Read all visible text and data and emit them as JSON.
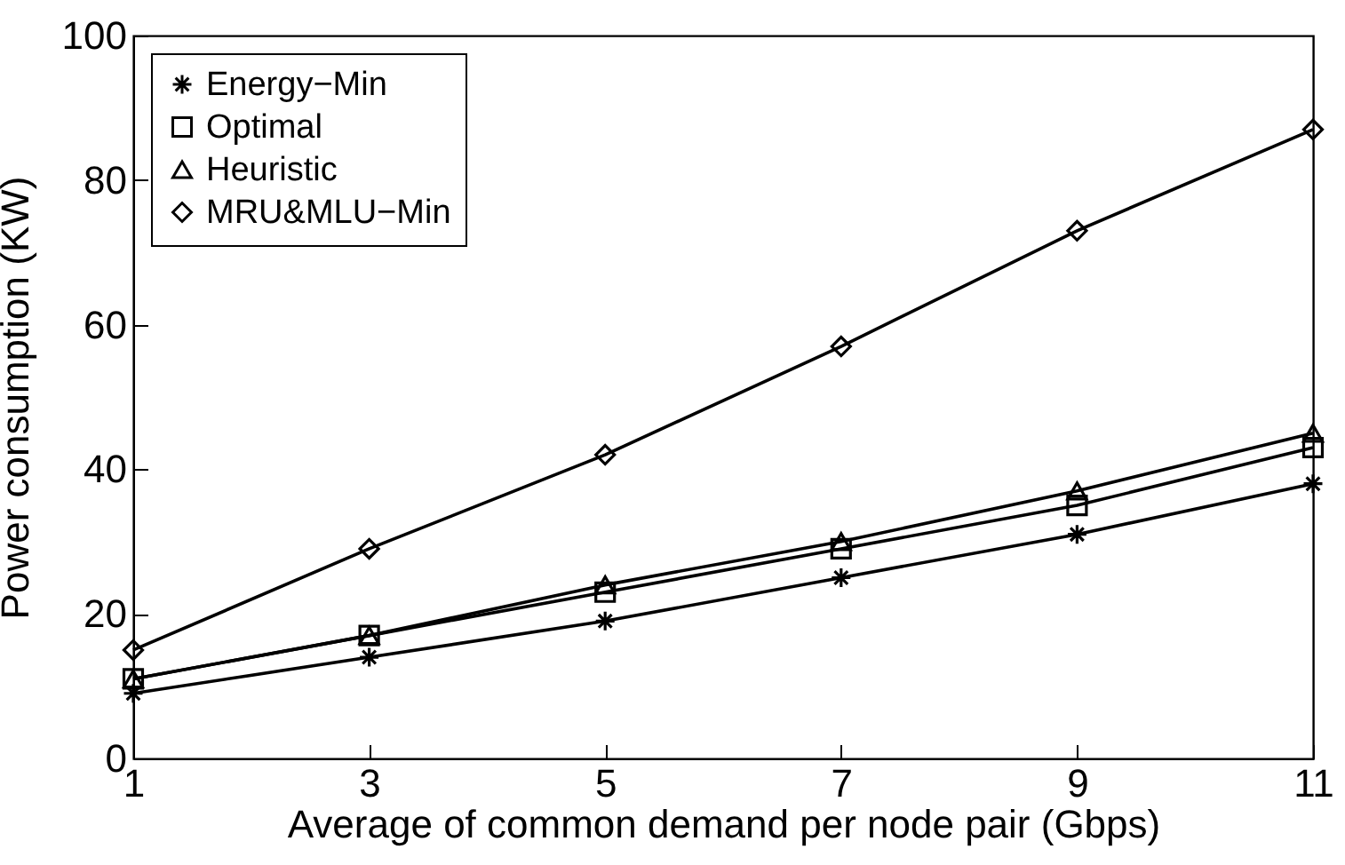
{
  "chart_data": {
    "type": "line",
    "xlabel": "Average of common demand per node pair (Gbps)",
    "ylabel": "Power consumption (KW)",
    "x": [
      1,
      3,
      5,
      7,
      9,
      11
    ],
    "series": [
      {
        "name": "Energy−Min",
        "color": "#000000",
        "marker": "cross",
        "values": [
          9,
          14,
          19,
          25,
          31,
          38
        ]
      },
      {
        "name": "Optimal",
        "color": "#000000",
        "marker": "square",
        "values": [
          11,
          17,
          23,
          29,
          35,
          43
        ]
      },
      {
        "name": "Heuristic",
        "color": "#000000",
        "marker": "triangle",
        "values": [
          11,
          17,
          24,
          30,
          37,
          45
        ]
      },
      {
        "name": "MRU&MLU−Min",
        "color": "#000000",
        "marker": "diamond",
        "values": [
          15,
          29,
          42,
          57,
          73,
          87
        ]
      }
    ],
    "xlim": [
      1,
      11
    ],
    "xticks": [
      1,
      3,
      5,
      7,
      9,
      11
    ],
    "ylim": [
      0,
      100
    ],
    "yticks": [
      0,
      20,
      40,
      60,
      80,
      100
    ],
    "grid": false,
    "legend": "top left",
    "line_style": "solid"
  }
}
